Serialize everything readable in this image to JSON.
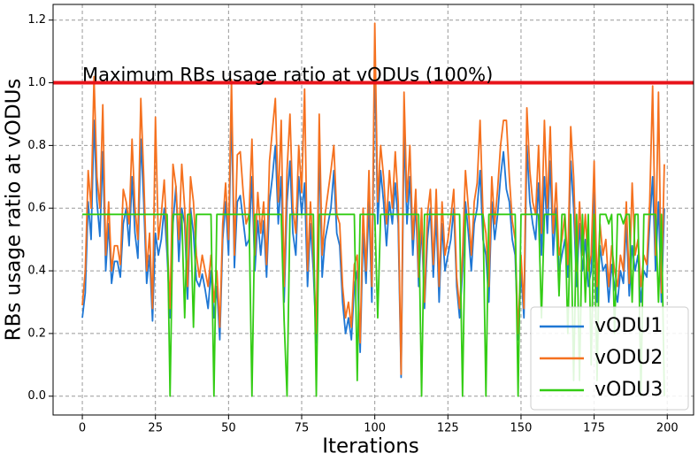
{
  "chart_data": {
    "type": "line",
    "xlabel": "Iterations",
    "ylabel": "RBs usage ratio at vODUs",
    "x": [
      0,
      1,
      2,
      3,
      4,
      5,
      6,
      7,
      8,
      9,
      10,
      11,
      12,
      13,
      14,
      15,
      16,
      17,
      18,
      19,
      20,
      21,
      22,
      23,
      24,
      25,
      26,
      27,
      28,
      29,
      30,
      31,
      32,
      33,
      34,
      35,
      36,
      37,
      38,
      39,
      40,
      41,
      42,
      43,
      44,
      45,
      46,
      47,
      48,
      49,
      50,
      51,
      52,
      53,
      54,
      55,
      56,
      57,
      58,
      59,
      60,
      61,
      62,
      63,
      64,
      65,
      66,
      67,
      68,
      69,
      70,
      71,
      72,
      73,
      74,
      75,
      76,
      77,
      78,
      79,
      80,
      81,
      82,
      83,
      84,
      85,
      86,
      87,
      88,
      89,
      90,
      91,
      92,
      93,
      94,
      95,
      96,
      97,
      98,
      99,
      100,
      101,
      102,
      103,
      104,
      105,
      106,
      107,
      108,
      109,
      110,
      111,
      112,
      113,
      114,
      115,
      116,
      117,
      118,
      119,
      120,
      121,
      122,
      123,
      124,
      125,
      126,
      127,
      128,
      129,
      130,
      131,
      132,
      133,
      134,
      135,
      136,
      137,
      138,
      139,
      140,
      141,
      142,
      143,
      144,
      145,
      146,
      147,
      148,
      149,
      150,
      151,
      152,
      153,
      154,
      155,
      156,
      157,
      158,
      159,
      160,
      161,
      162,
      163,
      164,
      165,
      166,
      167,
      168,
      169,
      170,
      171,
      172,
      173,
      174,
      175,
      176,
      177,
      178,
      179,
      180,
      181,
      182,
      183,
      184,
      185,
      186,
      187,
      188,
      189,
      190,
      191,
      192,
      193,
      194,
      195,
      196,
      197,
      198,
      199
    ],
    "series": [
      {
        "name": "vODU1",
        "color": "#1f77d4",
        "values": [
          0.25,
          0.33,
          0.62,
          0.5,
          0.88,
          0.62,
          0.51,
          0.78,
          0.4,
          0.55,
          0.36,
          0.43,
          0.43,
          0.38,
          0.55,
          0.6,
          0.48,
          0.7,
          0.52,
          0.44,
          0.82,
          0.62,
          0.36,
          0.45,
          0.24,
          0.52,
          0.45,
          0.5,
          0.6,
          0.45,
          0.25,
          0.55,
          0.67,
          0.43,
          0.6,
          0.55,
          0.31,
          0.6,
          0.52,
          0.37,
          0.35,
          0.39,
          0.34,
          0.28,
          0.4,
          0.25,
          0.35,
          0.18,
          0.5,
          0.62,
          0.45,
          0.92,
          0.41,
          0.62,
          0.64,
          0.56,
          0.48,
          0.5,
          0.7,
          0.4,
          0.56,
          0.45,
          0.56,
          0.38,
          0.62,
          0.7,
          0.8,
          0.55,
          0.7,
          0.3,
          0.62,
          0.75,
          0.52,
          0.45,
          0.7,
          0.58,
          0.68,
          0.35,
          0.55,
          0.4,
          0.17,
          0.8,
          0.38,
          0.5,
          0.55,
          0.6,
          0.72,
          0.52,
          0.48,
          0.3,
          0.2,
          0.25,
          0.18,
          0.35,
          0.4,
          0.14,
          0.52,
          0.36,
          0.62,
          0.3,
          1.1,
          0.55,
          0.72,
          0.62,
          0.48,
          0.62,
          0.55,
          0.68,
          0.55,
          0.06,
          0.85,
          0.55,
          0.7,
          0.45,
          0.62,
          0.35,
          0.55,
          0.28,
          0.5,
          0.6,
          0.38,
          0.58,
          0.3,
          0.55,
          0.4,
          0.45,
          0.5,
          0.6,
          0.35,
          0.25,
          0.4,
          0.62,
          0.52,
          0.4,
          0.55,
          0.6,
          0.72,
          0.5,
          0.45,
          0.3,
          0.62,
          0.5,
          0.58,
          0.7,
          0.78,
          0.66,
          0.62,
          0.5,
          0.45,
          0.18,
          0.4,
          0.25,
          0.8,
          0.62,
          0.55,
          0.5,
          0.68,
          0.45,
          0.7,
          0.52,
          0.75,
          0.45,
          0.6,
          0.4,
          0.45,
          0.5,
          0.38,
          0.75,
          0.6,
          0.35,
          0.55,
          0.4,
          0.5,
          0.35,
          0.4,
          0.65,
          0.3,
          0.48,
          0.4,
          0.42,
          0.3,
          0.42,
          0.35,
          0.3,
          0.4,
          0.36,
          0.55,
          0.32,
          0.48,
          0.4,
          0.45,
          0.3,
          0.4,
          0.38,
          0.55,
          0.7,
          0.4,
          0.62,
          0.3,
          0.6
        ]
      },
      {
        "name": "vODU2",
        "color": "#f5711f",
        "values": [
          0.29,
          0.4,
          0.72,
          0.6,
          1.02,
          0.7,
          0.6,
          0.93,
          0.45,
          0.62,
          0.4,
          0.48,
          0.48,
          0.42,
          0.66,
          0.62,
          0.55,
          0.82,
          0.6,
          0.5,
          0.95,
          0.7,
          0.4,
          0.52,
          0.28,
          0.89,
          0.5,
          0.58,
          0.69,
          0.5,
          0.28,
          0.74,
          0.67,
          0.5,
          0.74,
          0.6,
          0.35,
          0.7,
          0.62,
          0.45,
          0.38,
          0.45,
          0.4,
          0.35,
          0.45,
          0.3,
          0.4,
          0.22,
          0.55,
          0.68,
          0.5,
          1.01,
          0.45,
          0.77,
          0.78,
          0.65,
          0.55,
          0.58,
          0.82,
          0.45,
          0.65,
          0.52,
          0.62,
          0.42,
          0.75,
          0.85,
          0.95,
          0.62,
          0.88,
          0.35,
          0.72,
          0.9,
          0.6,
          0.52,
          0.8,
          0.65,
          0.98,
          0.4,
          0.62,
          0.45,
          0.2,
          0.9,
          0.45,
          0.58,
          0.65,
          0.72,
          0.8,
          0.58,
          0.55,
          0.35,
          0.25,
          0.3,
          0.22,
          0.42,
          0.45,
          0.17,
          0.6,
          0.4,
          0.72,
          0.35,
          1.19,
          0.62,
          0.8,
          0.7,
          0.55,
          0.72,
          0.6,
          0.78,
          0.62,
          0.07,
          0.97,
          0.62,
          0.8,
          0.5,
          0.66,
          0.38,
          0.6,
          0.3,
          0.58,
          0.66,
          0.42,
          0.66,
          0.35,
          0.62,
          0.45,
          0.5,
          0.57,
          0.66,
          0.38,
          0.28,
          0.45,
          0.72,
          0.6,
          0.45,
          0.62,
          0.68,
          0.88,
          0.58,
          0.52,
          0.35,
          0.7,
          0.55,
          0.66,
          0.8,
          0.88,
          0.88,
          0.7,
          0.56,
          0.5,
          0.2,
          0.45,
          0.28,
          0.92,
          0.72,
          0.62,
          0.58,
          0.8,
          0.52,
          0.88,
          0.6,
          0.86,
          0.52,
          0.68,
          0.45,
          0.5,
          0.58,
          0.42,
          0.86,
          0.7,
          0.4,
          0.62,
          0.45,
          0.58,
          0.4,
          0.45,
          0.75,
          0.35,
          0.55,
          0.45,
          0.5,
          0.35,
          0.48,
          0.4,
          0.35,
          0.45,
          0.4,
          0.62,
          0.36,
          0.68,
          0.45,
          0.5,
          0.35,
          0.45,
          0.42,
          0.62,
          0.99,
          0.45,
          0.97,
          0.33,
          0.74
        ]
      },
      {
        "name": "vODU3",
        "color": "#33cc14",
        "values": [
          0.58,
          0.58,
          0.58,
          0.58,
          0.58,
          0.58,
          0.58,
          0.58,
          0.58,
          0.58,
          0.58,
          0.58,
          0.58,
          0.58,
          0.58,
          0.58,
          0.58,
          0.58,
          0.58,
          0.58,
          0.58,
          0.58,
          0.58,
          0.58,
          0.58,
          0.58,
          0.58,
          0.58,
          0.58,
          0.58,
          0.0,
          0.58,
          0.58,
          0.58,
          0.58,
          0.25,
          0.58,
          0.58,
          0.22,
          0.58,
          0.58,
          0.58,
          0.58,
          0.58,
          0.58,
          0.0,
          0.58,
          0.58,
          0.58,
          0.58,
          0.58,
          0.58,
          0.58,
          0.58,
          0.58,
          0.58,
          0.58,
          0.58,
          0.0,
          0.58,
          0.58,
          0.58,
          0.58,
          0.58,
          0.58,
          0.58,
          0.58,
          0.58,
          0.58,
          0.24,
          0.0,
          0.58,
          0.58,
          0.58,
          0.58,
          0.58,
          0.58,
          0.58,
          0.58,
          0.58,
          0.0,
          0.58,
          0.58,
          0.58,
          0.58,
          0.58,
          0.58,
          0.58,
          0.58,
          0.58,
          0.58,
          0.58,
          0.58,
          0.58,
          0.05,
          0.58,
          0.58,
          0.58,
          0.58,
          0.58,
          0.58,
          0.25,
          0.58,
          0.58,
          0.58,
          0.58,
          0.58,
          0.58,
          0.58,
          0.58,
          0.58,
          0.58,
          0.58,
          0.58,
          0.58,
          0.58,
          0.0,
          0.58,
          0.58,
          0.58,
          0.58,
          0.58,
          0.58,
          0.58,
          0.58,
          0.58,
          0.58,
          0.58,
          0.58,
          0.58,
          0.0,
          0.58,
          0.58,
          0.58,
          0.58,
          0.58,
          0.58,
          0.58,
          0.0,
          0.58,
          0.58,
          0.58,
          0.58,
          0.58,
          0.58,
          0.58,
          0.58,
          0.58,
          0.58,
          0.0,
          0.58,
          0.58,
          0.58,
          0.58,
          0.58,
          0.58,
          0.58,
          0.25,
          0.58,
          0.58,
          0.58,
          0.58,
          0.58,
          0.32,
          0.58,
          0.58,
          0.2,
          0.58,
          0.05,
          0.58,
          0.05,
          0.58,
          0.3,
          0.58,
          0.1,
          0.58,
          0.05,
          0.58,
          0.58,
          0.58,
          0.55,
          0.58,
          0.2,
          0.58,
          0.58,
          0.55,
          0.58,
          0.58,
          0.3,
          0.58,
          0.58,
          0.0,
          0.58,
          0.58,
          0.58,
          0.58,
          0.58,
          0.3,
          0.58,
          0.0
        ]
      }
    ],
    "hline": {
      "value": 1,
      "label": "Maximum RBs usage ratio at vODUs (100%)",
      "color": "#e8141b"
    },
    "xlim": [
      -10,
      209
    ],
    "ylim": [
      -0.06,
      1.25
    ],
    "xticks": [
      0,
      25,
      50,
      75,
      100,
      125,
      150,
      175,
      200
    ],
    "yticks": [
      {
        "value": 0,
        "label": "0.0"
      },
      0.2,
      0.4,
      0.6,
      0.8,
      {
        "value": 1,
        "label": "1.0"
      },
      1.2
    ],
    "grid": true,
    "legend": "lower right"
  }
}
